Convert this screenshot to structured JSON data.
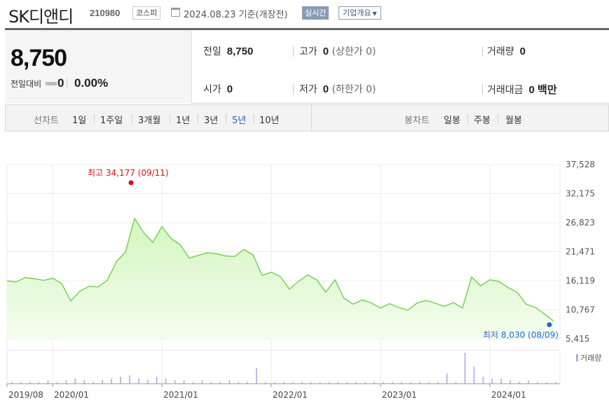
{
  "stock": {
    "name": "SK디앤디",
    "code": "210980",
    "market": "코스피",
    "date": "2024.08.23 기준(개장전)",
    "realtime": "실시간",
    "corp_overview": "기업개요"
  },
  "price": {
    "current": "8,750",
    "change_label": "전일대비",
    "change": "0",
    "change_pct": "0.00%",
    "prev_label": "전일",
    "prev": "8,750",
    "high_label": "고가",
    "high": "0",
    "upper_limit": "(상한가 0)",
    "volume_label": "거래량",
    "volume": "0",
    "open_label": "시가",
    "open": "0",
    "low_label": "저가",
    "low": "0",
    "lower_limit": "(하한가 0)",
    "amount_label": "거래대금",
    "amount": "0 백만"
  },
  "periods": {
    "line_label": "선차트",
    "line_items": [
      "1일",
      "1주일",
      "3개월",
      "1년",
      "3년",
      "5년",
      "10년"
    ],
    "active": "5년",
    "candle_label": "봉차트",
    "candle_items": [
      "일봉",
      "주봉",
      "월봉"
    ]
  },
  "chart_data": {
    "type": "area",
    "y_ticks": [
      "37,528",
      "32,175",
      "26,823",
      "21,471",
      "16,119",
      "10,767",
      "5,415"
    ],
    "ylim": [
      5415,
      37528
    ],
    "x_ticks": [
      "2019/08",
      "2020/01",
      "2021/01",
      "2022/01",
      "2023/01",
      "2024/01"
    ],
    "max_label": "최고 34,177 (09/11)",
    "min_label": "최저 8,030 (08/09)",
    "volume_label": "거래량",
    "grid": true,
    "price_series": [
      [
        "2019/08",
        16100
      ],
      [
        "2019/09",
        15900
      ],
      [
        "2019/10",
        16700
      ],
      [
        "2019/11",
        16500
      ],
      [
        "2019/12",
        16200
      ],
      [
        "2020/01",
        16600
      ],
      [
        "2020/02",
        15600
      ],
      [
        "2020/03",
        12400
      ],
      [
        "2020/04",
        14200
      ],
      [
        "2020/05",
        15100
      ],
      [
        "2020/06",
        15000
      ],
      [
        "2020/07",
        16200
      ],
      [
        "2020/08",
        19600
      ],
      [
        "2020/09",
        21400
      ],
      [
        "2020/10",
        27600
      ],
      [
        "2020/11",
        25000
      ],
      [
        "2020/12",
        23200
      ],
      [
        "2021/01",
        26100
      ],
      [
        "2021/02",
        23900
      ],
      [
        "2021/03",
        22800
      ],
      [
        "2021/04",
        20300
      ],
      [
        "2021/05",
        20800
      ],
      [
        "2021/06",
        21300
      ],
      [
        "2021/07",
        21100
      ],
      [
        "2021/08",
        20700
      ],
      [
        "2021/09",
        20600
      ],
      [
        "2021/10",
        21900
      ],
      [
        "2021/11",
        20900
      ],
      [
        "2021/12",
        17100
      ],
      [
        "2022/01",
        17700
      ],
      [
        "2022/02",
        16900
      ],
      [
        "2022/03",
        14600
      ],
      [
        "2022/04",
        16000
      ],
      [
        "2022/05",
        17200
      ],
      [
        "2022/06",
        16300
      ],
      [
        "2022/07",
        14000
      ],
      [
        "2022/08",
        16300
      ],
      [
        "2022/09",
        12900
      ],
      [
        "2022/10",
        11800
      ],
      [
        "2022/11",
        12600
      ],
      [
        "2022/12",
        12000
      ],
      [
        "2023/01",
        11100
      ],
      [
        "2023/02",
        11900
      ],
      [
        "2023/03",
        11200
      ],
      [
        "2023/04",
        10700
      ],
      [
        "2023/05",
        12000
      ],
      [
        "2023/06",
        12500
      ],
      [
        "2023/07",
        12000
      ],
      [
        "2023/08",
        11400
      ],
      [
        "2023/09",
        12100
      ],
      [
        "2023/10",
        11100
      ],
      [
        "2023/11",
        16800
      ],
      [
        "2023/12",
        15200
      ],
      [
        "2024/01",
        16300
      ],
      [
        "2024/02",
        16000
      ],
      [
        "2024/03",
        14900
      ],
      [
        "2024/04",
        14000
      ],
      [
        "2024/05",
        11800
      ],
      [
        "2024/06",
        11200
      ],
      [
        "2024/07",
        10000
      ],
      [
        "2024/08",
        8700
      ]
    ],
    "volume_series": [
      1,
      1,
      1,
      1,
      2,
      1,
      2,
      3,
      2,
      1,
      2,
      3,
      4,
      5,
      3,
      2,
      4,
      3,
      2,
      2,
      1,
      2,
      1,
      1,
      2,
      1,
      1,
      9,
      1,
      1,
      1,
      1,
      1,
      1,
      1,
      1,
      1,
      1,
      1,
      1,
      1,
      1,
      1,
      1,
      1,
      1,
      1,
      1,
      6,
      1,
      18,
      10,
      4,
      3,
      3,
      2,
      1,
      2,
      1,
      1,
      1
    ],
    "colors": {
      "line": "#6fd14c",
      "fill_top": "#d4f5c1",
      "fill_bottom": "#f4fdee",
      "max_marker": "#e21010",
      "min_marker": "#1f6ad4",
      "volume": "#b7a6df"
    }
  }
}
